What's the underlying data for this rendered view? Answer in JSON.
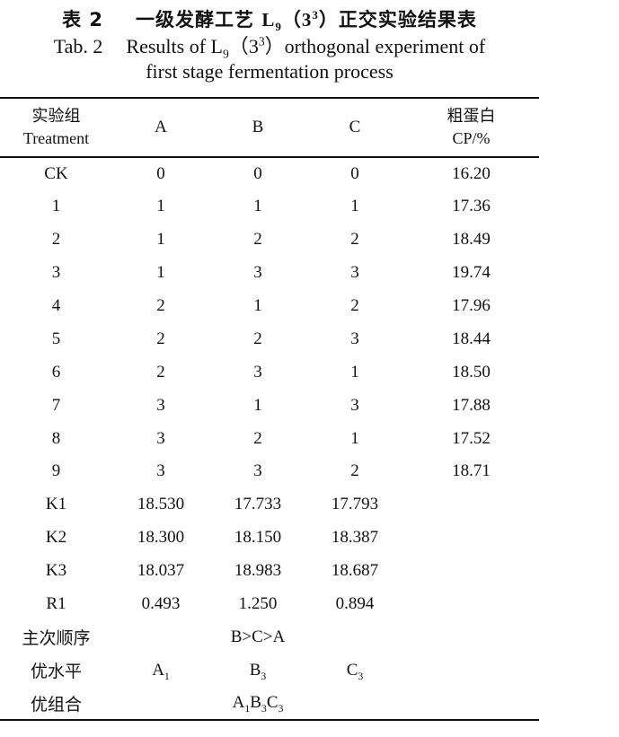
{
  "title_cn": {
    "prefix": "表 2",
    "text_before": "一级发酵工艺 ",
    "L": "L",
    "L_sub": "9",
    "paren_open": "（",
    "base": "3",
    "exp": "3",
    "paren_close": "）",
    "text_after": "正交实验结果表"
  },
  "title_en": {
    "prefix": "Tab. 2",
    "text_before": "Results of L",
    "L_sub": "9",
    "paren_open": "（",
    "base": "3",
    "exp": "3",
    "paren_close": "）",
    "text_after": "orthogonal experiment of",
    "line2": "first stage fermentation process"
  },
  "table": {
    "header": {
      "col0_cn": "实验组",
      "col0_en": "Treatment",
      "col1": "A",
      "col2": "B",
      "col3": "C",
      "col4_cn": "粗蛋白",
      "col4_en": "CP/%"
    },
    "rows": [
      [
        "CK",
        "0",
        "0",
        "0",
        "16.20"
      ],
      [
        "1",
        "1",
        "1",
        "1",
        "17.36"
      ],
      [
        "2",
        "1",
        "2",
        "2",
        "18.49"
      ],
      [
        "3",
        "1",
        "3",
        "3",
        "19.74"
      ],
      [
        "4",
        "2",
        "1",
        "2",
        "17.96"
      ],
      [
        "5",
        "2",
        "2",
        "3",
        "18.44"
      ],
      [
        "6",
        "2",
        "3",
        "1",
        "18.50"
      ],
      [
        "7",
        "3",
        "1",
        "3",
        "17.88"
      ],
      [
        "8",
        "3",
        "2",
        "1",
        "17.52"
      ],
      [
        "9",
        "3",
        "3",
        "2",
        "18.71"
      ],
      [
        "K1",
        "18.530",
        "17.733",
        "17.793",
        ""
      ],
      [
        "K2",
        "18.300",
        "18.150",
        "18.387",
        ""
      ],
      [
        "K3",
        "18.037",
        "18.983",
        "18.687",
        ""
      ],
      [
        "R1",
        "0.493",
        "1.250",
        "0.894",
        ""
      ]
    ],
    "order": {
      "label": "主次顺序",
      "value": "B>C>A"
    },
    "optimal_level": {
      "label": "优水平",
      "a": "A",
      "a_sub": "1",
      "b": "B",
      "b_sub": "3",
      "c": "C",
      "c_sub": "3"
    },
    "optimal_combo": {
      "label": "优组合",
      "p1": "A",
      "s1": "1",
      "p2": "B",
      "s2": "3",
      "p3": "C",
      "s3": "3"
    }
  }
}
